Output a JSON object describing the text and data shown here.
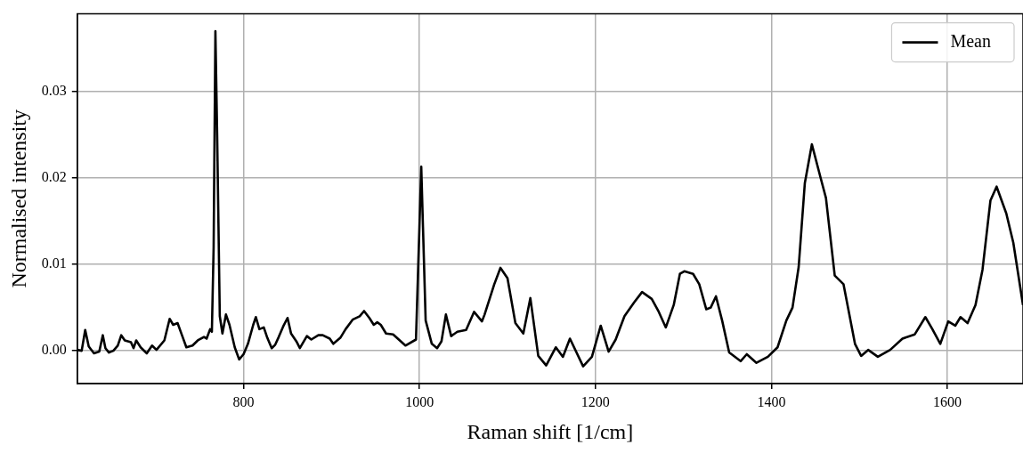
{
  "chart_data": {
    "type": "line",
    "xlabel": "Raman shift [1/cm]",
    "ylabel": "Normalised intensity",
    "xlim": [
      611,
      1686
    ],
    "ylim": [
      -0.0038,
      0.039
    ],
    "xticks": [
      800,
      1000,
      1200,
      1400,
      1600
    ],
    "yticks": [
      {
        "value": 0,
        "label": "0.00"
      },
      {
        "value": 0.01,
        "label": "0.01"
      },
      {
        "value": 0.02,
        "label": "0.02"
      },
      {
        "value": 0.03,
        "label": "0.03"
      }
    ],
    "grid": true,
    "legend": "top right",
    "marker": "none",
    "line_style": "solid",
    "series": [
      {
        "name": "Mean",
        "color": "#000000",
        "x": [
          611,
          616,
          620,
          624,
          630,
          636,
          640,
          643,
          647,
          652,
          657,
          661,
          665,
          672,
          675,
          678,
          683,
          690,
          696,
          701,
          710,
          716,
          720,
          725,
          730,
          735,
          742,
          748,
          755,
          758,
          762,
          764,
          766,
          768,
          770,
          773,
          776,
          780,
          784,
          790,
          795,
          800,
          805,
          811,
          814,
          818,
          823,
          827,
          832,
          836,
          840,
          845,
          850,
          854,
          860,
          864,
          868,
          872,
          877,
          885,
          890,
          898,
          902,
          910,
          916,
          924,
          932,
          937,
          943,
          948,
          952,
          956,
          962,
          970,
          984,
          996,
          1002,
          1007,
          1014,
          1020,
          1025,
          1030,
          1036,
          1043,
          1053,
          1062,
          1071,
          1074,
          1085,
          1092,
          1100,
          1109,
          1118,
          1126,
          1135,
          1144,
          1155,
          1163,
          1171,
          1186,
          1196,
          1206,
          1215,
          1223,
          1233,
          1244,
          1253,
          1264,
          1272,
          1280,
          1289,
          1296,
          1301,
          1311,
          1318,
          1326,
          1331,
          1337,
          1344,
          1352,
          1365,
          1372,
          1383,
          1396,
          1407,
          1417,
          1424,
          1431,
          1438,
          1446,
          1456,
          1462,
          1472,
          1482,
          1495,
          1502,
          1510,
          1521,
          1535,
          1549,
          1563,
          1575,
          1583,
          1592,
          1601,
          1609,
          1615,
          1623,
          1632,
          1640,
          1649,
          1656,
          1667,
          1675,
          1686
        ],
        "values": [
          0.0001,
          0.0,
          0.0024,
          0.0005,
          -0.0003,
          -0.0001,
          0.0018,
          0.0003,
          -0.0002,
          0.0,
          0.0006,
          0.0018,
          0.0012,
          0.001,
          0.0003,
          0.0012,
          0.0004,
          -0.0003,
          0.0006,
          0.0001,
          0.0012,
          0.0037,
          0.003,
          0.0032,
          0.0018,
          0.0004,
          0.0006,
          0.0012,
          0.0016,
          0.0014,
          0.0025,
          0.0022,
          0.012,
          0.037,
          0.025,
          0.004,
          0.002,
          0.0042,
          0.003,
          0.0004,
          -0.001,
          -0.0004,
          0.0008,
          0.003,
          0.0039,
          0.0025,
          0.0027,
          0.0015,
          0.0003,
          0.0007,
          0.0016,
          0.0028,
          0.0038,
          0.002,
          0.0011,
          0.0003,
          0.001,
          0.0017,
          0.0013,
          0.0018,
          0.0018,
          0.0014,
          0.0008,
          0.0015,
          0.0025,
          0.0036,
          0.004,
          0.0046,
          0.0038,
          0.003,
          0.0033,
          0.003,
          0.002,
          0.0019,
          0.0006,
          0.0013,
          0.0213,
          0.0035,
          0.0008,
          0.0003,
          0.0011,
          0.0042,
          0.0017,
          0.0022,
          0.0024,
          0.0045,
          0.0034,
          0.0042,
          0.0077,
          0.0096,
          0.0084,
          0.0032,
          0.002,
          0.0061,
          -0.0006,
          -0.0017,
          0.0004,
          -0.0007,
          0.0014,
          -0.0018,
          -0.0007,
          0.0029,
          -0.0001,
          0.0013,
          0.004,
          0.0056,
          0.0068,
          0.006,
          0.0045,
          0.0027,
          0.0053,
          0.0089,
          0.0092,
          0.0089,
          0.0077,
          0.0048,
          0.005,
          0.0063,
          0.0035,
          -0.0002,
          -0.0012,
          -0.0004,
          -0.0014,
          -0.0007,
          0.0004,
          0.0035,
          0.005,
          0.0097,
          0.0194,
          0.0239,
          0.02,
          0.0177,
          0.0087,
          0.0077,
          0.0008,
          -0.0006,
          0.0001,
          -0.0007,
          0.0001,
          0.0014,
          0.0019,
          0.0039,
          0.0025,
          0.0008,
          0.0034,
          0.0029,
          0.0039,
          0.0032,
          0.0053,
          0.0094,
          0.0174,
          0.019,
          0.0159,
          0.0125,
          0.0053
        ]
      }
    ]
  }
}
